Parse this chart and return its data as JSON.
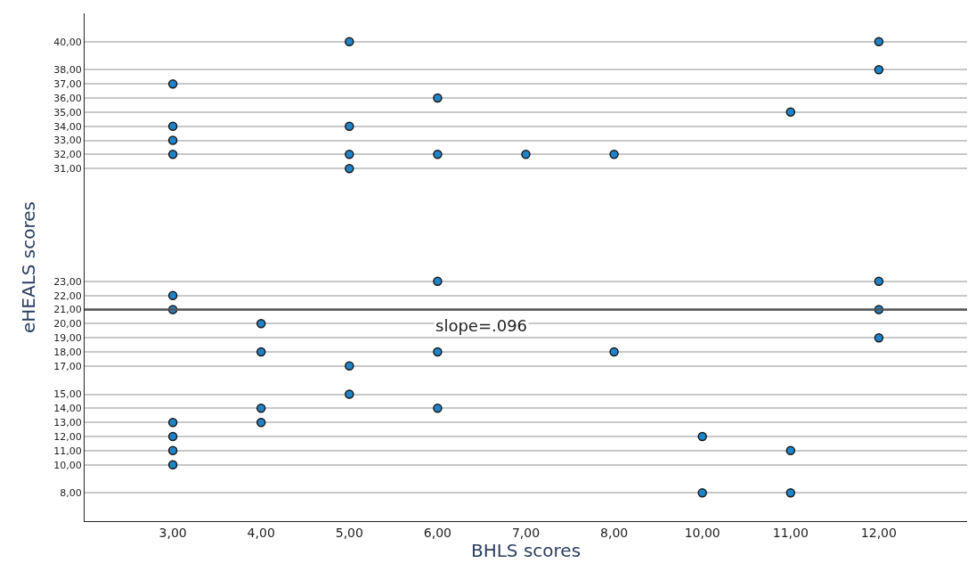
{
  "chart_data": {
    "type": "scatter",
    "xlabel": "BHLS scores",
    "ylabel": "eHEALS scores",
    "categories": [
      "3,00",
      "4,00",
      "5,00",
      "6,00",
      "7,00",
      "8,00",
      "10,00",
      "11,00",
      "12,00"
    ],
    "series": [
      {
        "color": "#1f83c9",
        "x": [
          "3,00",
          "3,00",
          "3,00",
          "3,00",
          "3,00",
          "3,00",
          "3,00",
          "3,00",
          "3,00",
          "3,00",
          "4,00",
          "4,00",
          "4,00",
          "4,00",
          "5,00",
          "5,00",
          "5,00",
          "5,00",
          "5,00",
          "5,00",
          "6,00",
          "6,00",
          "6,00",
          "6,00",
          "6,00",
          "7,00",
          "8,00",
          "8,00",
          "10,00",
          "10,00",
          "11,00",
          "11,00",
          "11,00",
          "12,00",
          "12,00",
          "12,00",
          "12,00",
          "12,00"
        ],
        "values": [
          37,
          34,
          33,
          32,
          22,
          21,
          13,
          12,
          11,
          10,
          20,
          18,
          14,
          13,
          40,
          34,
          32,
          31,
          17,
          15,
          36,
          32,
          23,
          18,
          14,
          32,
          32,
          18,
          12,
          8,
          35,
          11,
          8,
          40,
          38,
          23,
          21,
          19
        ]
      }
    ],
    "ylim": [
      6,
      42
    ],
    "yticks": [
      {
        "value": 8,
        "label": "8,00"
      },
      {
        "value": 10,
        "label": "10,00"
      },
      {
        "value": 11,
        "label": "11,00"
      },
      {
        "value": 12,
        "label": "12,00"
      },
      {
        "value": 13,
        "label": "13,00"
      },
      {
        "value": 14,
        "label": "14,00"
      },
      {
        "value": 15,
        "label": "15,00"
      },
      {
        "value": 17,
        "label": "17,00"
      },
      {
        "value": 18,
        "label": "18,00"
      },
      {
        "value": 19,
        "label": "19,00"
      },
      {
        "value": 20,
        "label": "20,00"
      },
      {
        "value": 21,
        "label": "21,00"
      },
      {
        "value": 22,
        "label": "22,00"
      },
      {
        "value": 23,
        "label": "23,00"
      },
      {
        "value": 31,
        "label": "31,00"
      },
      {
        "value": 32,
        "label": "32,00"
      },
      {
        "value": 33,
        "label": "33,00"
      },
      {
        "value": 34,
        "label": "34,00"
      },
      {
        "value": 35,
        "label": "35,00"
      },
      {
        "value": 36,
        "label": "36,00"
      },
      {
        "value": 37,
        "label": "37,00"
      },
      {
        "value": 38,
        "label": "38,00"
      },
      {
        "value": 40,
        "label": "40,00"
      }
    ],
    "ref_lines": [
      {
        "axis": "y",
        "value": 21,
        "label": "slope=.096",
        "color": "#555555"
      }
    ],
    "grid": "y",
    "marker": "circle"
  }
}
